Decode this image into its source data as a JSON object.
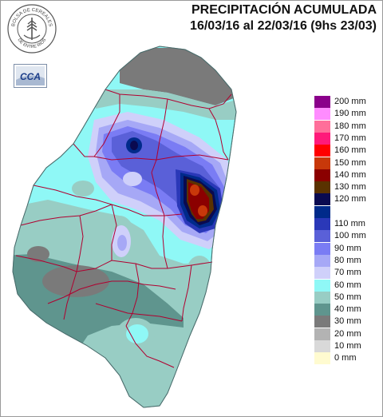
{
  "header": {
    "title_line1": "PRECIPITACIÓN ACUMULADA",
    "title_line2": "16/03/16 al 22/03/16 (9hs 23/03)"
  },
  "logos": {
    "seal_top": "BOLSA DE CEREALES",
    "seal_bottom": "DE ENTRE RIOS",
    "cca_text": "CCA"
  },
  "legend": [
    {
      "label": "200 mm",
      "color": "#8b008b"
    },
    {
      "label": "190 mm",
      "color": "#ff8cff"
    },
    {
      "label": "180 mm",
      "color": "#ff6f9a"
    },
    {
      "label": "170 mm",
      "color": "#ff1a7a"
    },
    {
      "label": "160 mm",
      "color": "#ff0000"
    },
    {
      "label": "150 mm",
      "color": "#c8380a"
    },
    {
      "label": "140 mm",
      "color": "#8b0000"
    },
    {
      "label": "130 mm",
      "color": "#5a3200"
    },
    {
      "label": "120 mm",
      "color": "#0a0a50"
    },
    {
      "label": "",
      "color": "#002a8a"
    },
    {
      "label": "110 mm",
      "color": "#2a38b8"
    },
    {
      "label": "100 mm",
      "color": "#5a60d8"
    },
    {
      "label": "90 mm",
      "color": "#7a7cf4"
    },
    {
      "label": "80 mm",
      "color": "#a6a8f6"
    },
    {
      "label": "70 mm",
      "color": "#cfd0fa"
    },
    {
      "label": "60 mm",
      "color": "#8ff8f6"
    },
    {
      "label": "50 mm",
      "color": "#98cdc4"
    },
    {
      "label": "40 mm",
      "color": "#5f958e"
    },
    {
      "label": "30 mm",
      "color": "#7a7a7a"
    },
    {
      "label": "20 mm",
      "color": "#b3b3b3"
    },
    {
      "label": "10 mm",
      "color": "#d9d9d9"
    },
    {
      "label": "0 mm",
      "color": "#fffbd0"
    }
  ],
  "map_colors": {
    "land_base": "#8ff8f6",
    "lavender": "#cfd0fa",
    "light_blue": "#a6a8f6",
    "mid_blue": "#7a7cf4",
    "blue": "#5a60d8",
    "deep_blue": "#2a38b8",
    "navy": "#002a8a",
    "dark_navy": "#0a0a50",
    "brown": "#5a3200",
    "dark_red": "#8b0000",
    "rust": "#c8380a",
    "teal": "#98cdc4",
    "dark_teal": "#5f958e",
    "gray": "#7a7a7a",
    "border": "#b00030"
  }
}
